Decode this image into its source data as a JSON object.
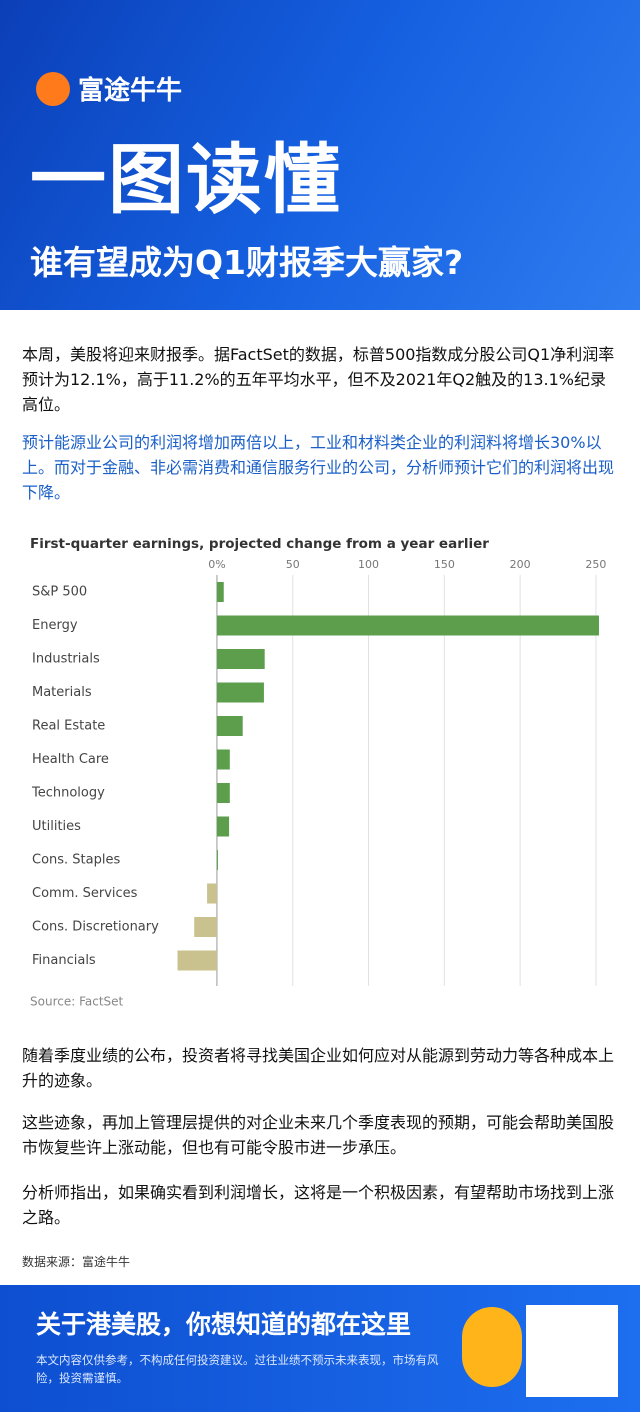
{
  "header": {
    "brand": "富途牛牛",
    "title": "一图读懂",
    "subtitle": "谁有望成为Q1财报季大赢家?"
  },
  "paragraphs": [
    "本周，美股将迎来财报季。据FactSet的数据，标普500指数成分股公司Q1净利润率预计为12.1%，高于11.2%的五年平均水平，但不及2021年Q2触及的13.1%纪录高位。",
    "预计能源业公司的利润将增加两倍以上，工业和材料类企业的利润料将增长30%以上。而对于金融、非必需消费和通信服务行业的公司，分析师预计它们的利润将出现下降。"
  ],
  "chart_data": {
    "type": "bar",
    "orientation": "horizontal",
    "title": "First-quarter earnings, projected change from a year earlier",
    "categories": [
      "S&P 500",
      "Energy",
      "Industrials",
      "Materials",
      "Real Estate",
      "Health Care",
      "Technology",
      "Utilities",
      "Cons. Staples",
      "Comm. Services",
      "Cons. Discretionary",
      "Financials"
    ],
    "values": [
      4.5,
      252,
      31.5,
      31,
      17,
      8.5,
      8.5,
      8,
      0.3,
      -6.5,
      -15,
      -26
    ],
    "color_positive": "#5c9e4c",
    "color_negative": "#c9c28e",
    "xlim": [
      -27,
      254
    ],
    "xticks": [
      {
        "value": 0,
        "label": "0%"
      },
      50,
      100,
      150,
      200,
      250
    ],
    "grid": true,
    "source": "Source: FactSet"
  },
  "paragraphs_after": [
    "随着季度业绩的公布，投资者将寻找美国企业如何应对从能源到劳动力等各种成本上升的迹象。",
    "这些迹象，再加上管理层提供的对企业未来几个季度表现的预期，可能会帮助美国股市恢复些许上涨动能，但也有可能令股市进一步承压。",
    "分析师指出，如果确实看到利润增长，这将是一个积极因素，有望帮助市场找到上涨之路。"
  ],
  "data_source": "数据来源：富途牛牛",
  "footer": {
    "slogan": "关于港美股，你想知道的都在这里",
    "disclaimer": "本文内容仅供参考，不构成任何投资建议。过往业绩不预示未来表现，市场有风险，投资需谨慎。"
  }
}
